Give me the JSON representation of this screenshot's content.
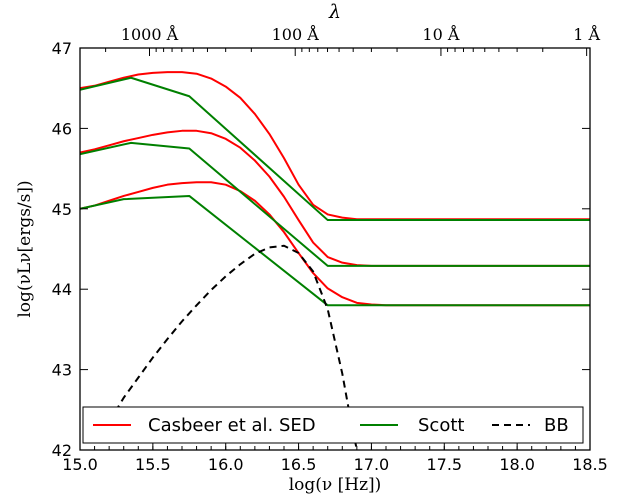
{
  "chart_data": {
    "type": "line",
    "title": "",
    "xlabel": "log(ν [Hz])",
    "ylabel": "log(νLν[ergs/s])",
    "x2label": "λ",
    "xlim": [
      15.0,
      18.5
    ],
    "ylim": [
      42,
      47
    ],
    "xticks": [
      15.0,
      15.5,
      16.0,
      16.5,
      17.0,
      17.5,
      18.0,
      18.5
    ],
    "xtick_labels": [
      "15.0",
      "15.5",
      "16.0",
      "16.5",
      "17.0",
      "17.5",
      "18.0",
      "18.5"
    ],
    "yticks": [
      42,
      43,
      44,
      45,
      46,
      47
    ],
    "ytick_labels": [
      "42",
      "43",
      "44",
      "45",
      "46",
      "47"
    ],
    "top_ticks": [
      {
        "label": "1000 Å",
        "x": 15.477
      },
      {
        "label": "100 Å",
        "x": 16.477
      },
      {
        "label": "10 Å",
        "x": 17.477
      },
      {
        "label": "1 Å",
        "x": 18.477
      }
    ],
    "grid": false,
    "legend_position": "bottom",
    "legend": [
      {
        "name": "Casbeer et al. SED",
        "color": "#ff0000",
        "style": "solid"
      },
      {
        "name": "Scott",
        "color": "#008000",
        "style": "solid"
      },
      {
        "name": "BB",
        "color": "#000000",
        "style": "dashed"
      }
    ],
    "series": [
      {
        "legend_index": 0,
        "color": "#ff0000",
        "style": "solid",
        "x": [
          15.0,
          15.1,
          15.2,
          15.3,
          15.4,
          15.5,
          15.6,
          15.7,
          15.8,
          15.9,
          16.0,
          16.1,
          16.2,
          16.3,
          16.4,
          16.5,
          16.6,
          16.7,
          16.8,
          16.9,
          17.0,
          17.2,
          17.5,
          18.0,
          18.5
        ],
        "y": [
          46.5,
          46.53,
          46.58,
          46.63,
          46.67,
          46.69,
          46.7,
          46.7,
          46.68,
          46.62,
          46.52,
          46.38,
          46.18,
          45.93,
          45.63,
          45.3,
          45.05,
          44.93,
          44.89,
          44.87,
          44.87,
          44.87,
          44.87,
          44.87,
          44.87
        ]
      },
      {
        "legend_index": 0,
        "color": "#ff0000",
        "style": "solid",
        "x": [
          15.0,
          15.1,
          15.2,
          15.3,
          15.4,
          15.5,
          15.6,
          15.7,
          15.8,
          15.9,
          16.0,
          16.1,
          16.2,
          16.3,
          16.4,
          16.5,
          16.6,
          16.7,
          16.8,
          16.9,
          17.0,
          17.1,
          17.2,
          17.5,
          18.0,
          18.5
        ],
        "y": [
          45.7,
          45.74,
          45.79,
          45.84,
          45.88,
          45.92,
          45.95,
          45.97,
          45.97,
          45.94,
          45.87,
          45.76,
          45.6,
          45.4,
          45.15,
          44.86,
          44.58,
          44.4,
          44.33,
          44.3,
          44.29,
          44.29,
          44.29,
          44.29,
          44.29,
          44.29
        ]
      },
      {
        "legend_index": 0,
        "color": "#ff0000",
        "style": "solid",
        "x": [
          15.0,
          15.1,
          15.2,
          15.3,
          15.4,
          15.5,
          15.6,
          15.7,
          15.8,
          15.9,
          16.0,
          16.1,
          16.2,
          16.3,
          16.4,
          16.5,
          16.6,
          16.7,
          16.8,
          16.9,
          17.0,
          17.1,
          17.2,
          17.5,
          18.0,
          18.5
        ],
        "y": [
          45.0,
          45.04,
          45.1,
          45.16,
          45.21,
          45.26,
          45.3,
          45.32,
          45.33,
          45.33,
          45.3,
          45.22,
          45.1,
          44.93,
          44.71,
          44.45,
          44.2,
          44.01,
          43.9,
          43.83,
          43.81,
          43.8,
          43.8,
          43.8,
          43.8,
          43.8
        ]
      },
      {
        "legend_index": 1,
        "color": "#008000",
        "style": "solid",
        "x": [
          15.0,
          15.35,
          15.75,
          16.7,
          17.25,
          18.5
        ],
        "y": [
          46.48,
          46.63,
          46.4,
          44.86,
          44.86,
          44.86
        ]
      },
      {
        "legend_index": 1,
        "color": "#008000",
        "style": "solid",
        "x": [
          15.0,
          15.35,
          15.75,
          16.7,
          17.0,
          18.5
        ],
        "y": [
          45.68,
          45.82,
          45.75,
          44.29,
          44.29,
          44.29
        ]
      },
      {
        "legend_index": 1,
        "color": "#008000",
        "style": "solid",
        "x": [
          15.0,
          15.3,
          15.75,
          16.7,
          17.2,
          18.5
        ],
        "y": [
          45.0,
          45.12,
          45.16,
          43.8,
          43.8,
          43.8
        ]
      },
      {
        "legend_index": 2,
        "color": "#000000",
        "style": "dashed",
        "x": [
          15.2,
          15.3,
          15.4,
          15.5,
          15.6,
          15.7,
          15.8,
          15.9,
          16.0,
          16.1,
          16.2,
          16.3,
          16.4,
          16.5,
          16.6,
          16.7,
          16.8,
          16.85,
          16.9
        ],
        "y": [
          42.35,
          42.65,
          42.9,
          43.15,
          43.38,
          43.6,
          43.8,
          43.99,
          44.16,
          44.31,
          44.44,
          44.52,
          44.54,
          44.45,
          44.22,
          43.75,
          42.95,
          42.45,
          42.0
        ]
      }
    ]
  }
}
